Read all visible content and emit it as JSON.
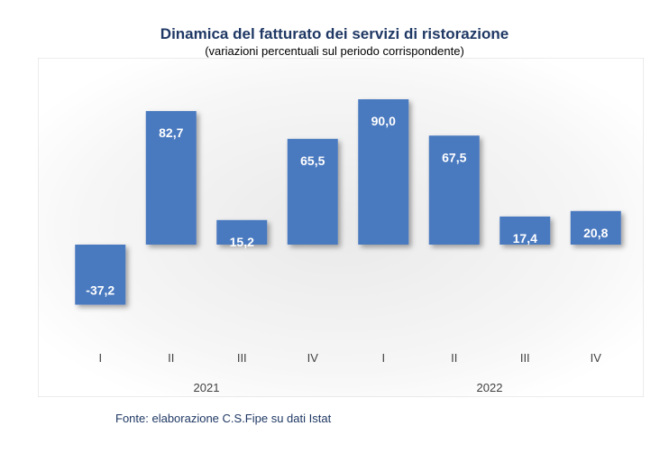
{
  "title": "Dinamica del fatturato dei servizi di ristorazione",
  "subtitle": "(variazioni percentuali sul periodo corrispondente)",
  "source": "Fonte: elaborazione C.S.Fipe su dati Istat",
  "colors": {
    "bar": "#4a79bf",
    "title": "#1f3864",
    "source": "#1f3864"
  },
  "chart_data": {
    "type": "bar",
    "categories": [
      "I",
      "II",
      "III",
      "IV",
      "I",
      "II",
      "III",
      "IV"
    ],
    "groups": [
      {
        "label": "2021",
        "categories": [
          "I",
          "II",
          "III",
          "IV"
        ]
      },
      {
        "label": "2022",
        "categories": [
          "I",
          "II",
          "III",
          "IV"
        ]
      }
    ],
    "values": [
      -37.2,
      82.7,
      15.2,
      65.5,
      90.0,
      67.5,
      17.4,
      20.8
    ],
    "value_labels": [
      "-37,2",
      "82,7",
      "15,2",
      "65,5",
      "90,0",
      "67,5",
      "17,4",
      "20,8"
    ],
    "ylim": [
      -37.2,
      90.0
    ],
    "grid": false,
    "legend": "none"
  }
}
